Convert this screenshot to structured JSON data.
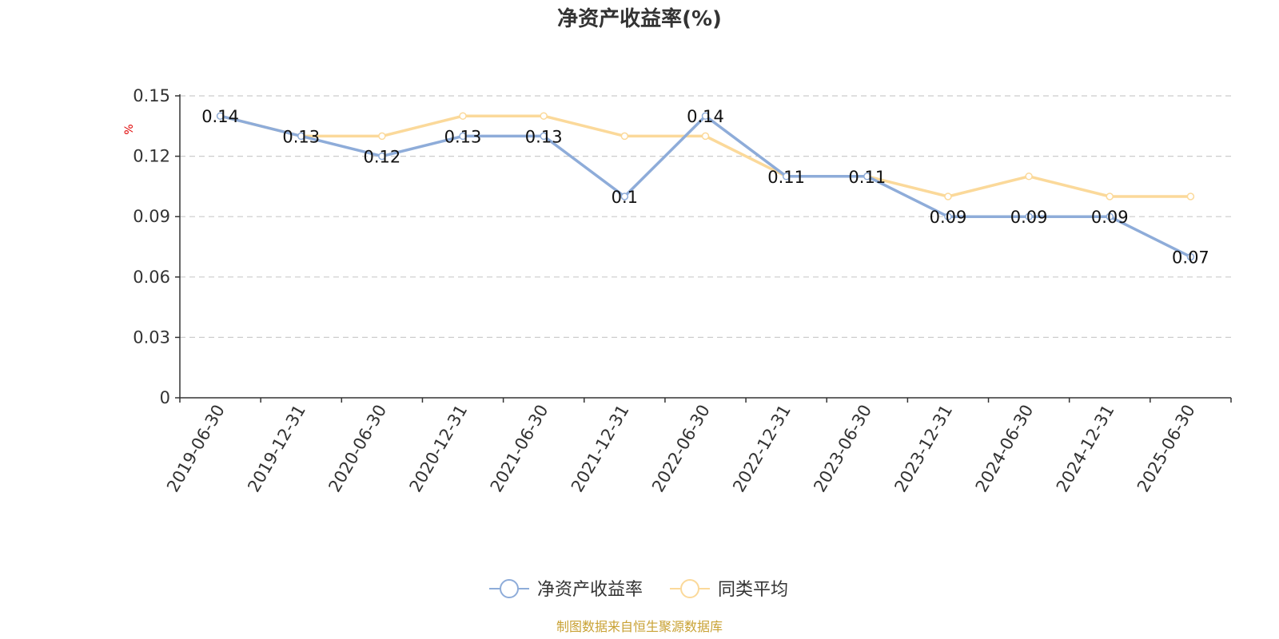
{
  "colors": {
    "series_primary": "#8eacd9",
    "series_secondary": "#fbd99a",
    "unit_label": "#e00000",
    "source_text": "#c9a235"
  },
  "chart_data": {
    "type": "line",
    "title": "净资产收益率(%)",
    "ylabel": "%",
    "xlabel": "",
    "ylim": [
      0,
      0.15
    ],
    "yticks": [
      "0",
      "0.03",
      "0.06",
      "0.09",
      "0.12",
      "0.15"
    ],
    "grid": true,
    "legend_position": "bottom-center",
    "categories": [
      "2019-06-30",
      "2019-12-31",
      "2020-06-30",
      "2020-12-31",
      "2021-06-30",
      "2021-12-31",
      "2022-06-30",
      "2022-12-31",
      "2023-06-30",
      "2023-12-31",
      "2024-06-30",
      "2024-12-31",
      "2025-06-30"
    ],
    "series": [
      {
        "name": "净资产收益率",
        "values": [
          0.14,
          0.13,
          0.12,
          0.13,
          0.13,
          0.1,
          0.14,
          0.11,
          0.11,
          0.09,
          0.09,
          0.09,
          0.07
        ],
        "labels": [
          "0.14",
          "0.13",
          "0.12",
          "0.13",
          "0.13",
          "0.1",
          "0.14",
          "0.11",
          "0.11",
          "0.09",
          "0.09",
          "0.09",
          "0.07"
        ]
      },
      {
        "name": "同类平均",
        "values": [
          0.14,
          0.13,
          0.13,
          0.14,
          0.14,
          0.13,
          0.13,
          0.11,
          0.11,
          0.1,
          0.11,
          0.1,
          0.1
        ]
      }
    ]
  },
  "source": "制图数据来自恒生聚源数据库"
}
